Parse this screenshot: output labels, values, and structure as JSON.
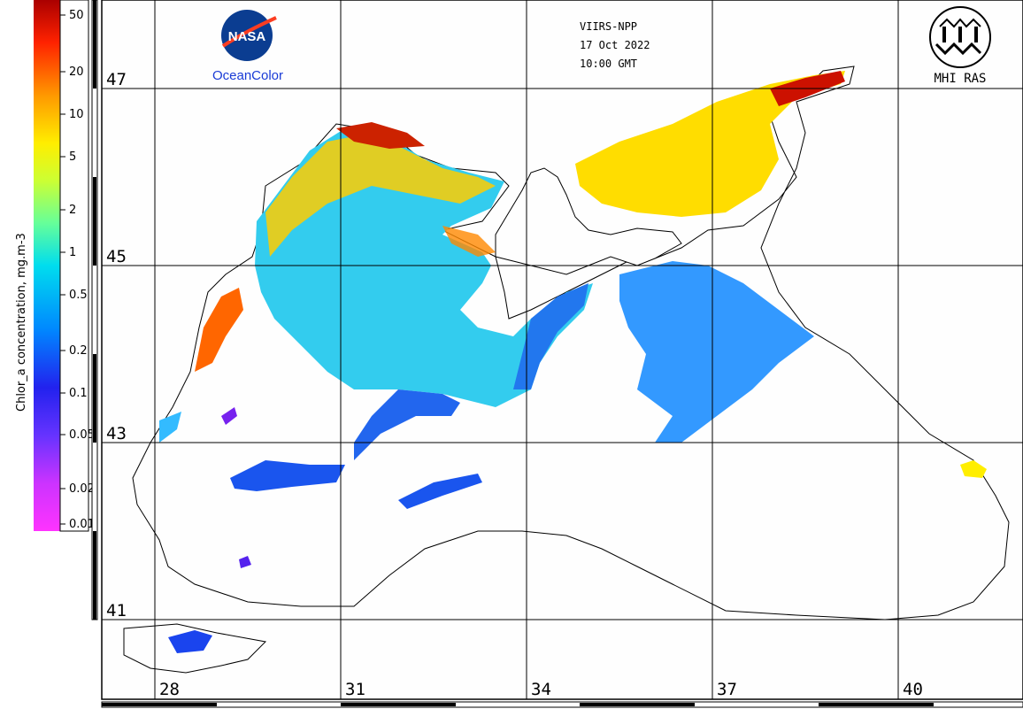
{
  "header": {
    "sensor": "VIIRS-NPP",
    "date": "17 Oct 2022",
    "time": "10:00 GMT"
  },
  "logos": {
    "nasa_text": "NASA",
    "oceancolor": "OceanColor",
    "mhi": "MHI RAS"
  },
  "colorbar": {
    "title": "Chlor_a concentration, mg.m-3",
    "ticks": [
      "50",
      "20",
      "10",
      "5",
      "2",
      "1",
      "0.5",
      "0.2",
      "0.1",
      "0.05",
      "0.02",
      "0.01"
    ],
    "colors": [
      "#ff33ff",
      "#9933ff",
      "#3333ff",
      "#0099ff",
      "#00ccff",
      "#33ffcc",
      "#ccff33",
      "#ffee00",
      "#ff9900",
      "#ff3300",
      "#cc0000",
      "#990000"
    ]
  },
  "latitudes": [
    "47",
    "45",
    "43",
    "41"
  ],
  "longitudes": [
    "28",
    "31",
    "34",
    "37",
    "40"
  ]
}
